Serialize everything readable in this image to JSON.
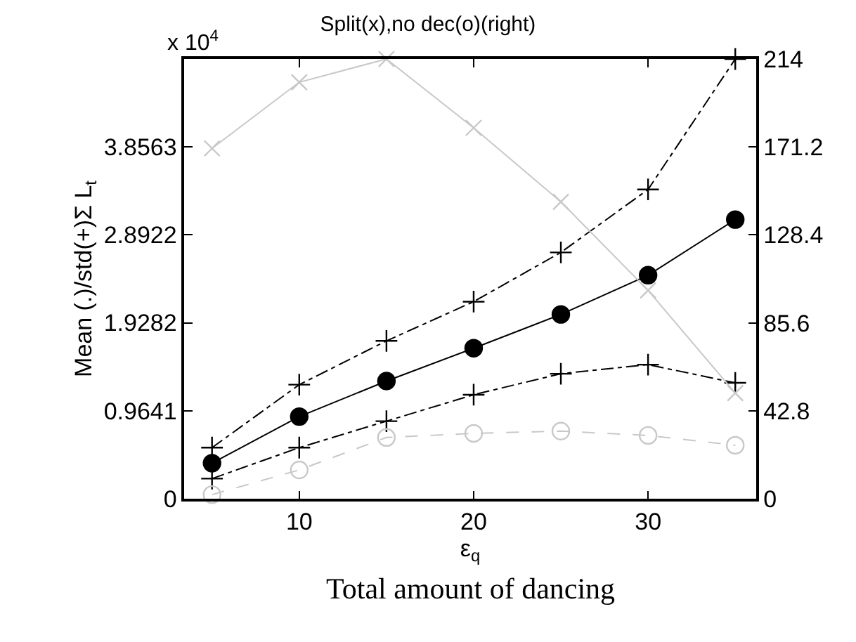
{
  "chart_data": {
    "type": "line",
    "title": "Split(x),no dec(o)(right)",
    "xlabel": "ε$_{q}$",
    "ylabel": "Mean (.)/std(+)Σ L$_{t}$",
    "annotations": [
      "x 10$^{4}$",
      "Total amount of dancing"
    ],
    "x": [
      5,
      10,
      15,
      20,
      25,
      30,
      35
    ],
    "xlim": [
      3.4,
      36.2
    ],
    "xticks": [
      10,
      20,
      30
    ],
    "ylim": [
      0,
      4.82
    ],
    "yticks": [
      0,
      0.9641,
      1.9282,
      2.8922,
      3.8563
    ],
    "y2lim": [
      0,
      214
    ],
    "y2ticks": [
      0,
      42.8,
      85.6,
      128.4,
      171.2,
      214
    ],
    "legend": false,
    "series": [
      {
        "color": "#000000",
        "marker": "circle",
        "line_style": "solid",
        "values": [
          0.39,
          0.9,
          1.29,
          1.65,
          2.02,
          2.45,
          3.06
        ]
      },
      {
        "color": "#000000",
        "marker": "cross",
        "line_style": "dashdot",
        "values": [
          0.56,
          1.25,
          1.73,
          2.16,
          2.7,
          3.39,
          4.82
        ]
      },
      {
        "color": "#000000",
        "marker": "cross",
        "line_style": "dashdot",
        "values": [
          0.22,
          0.56,
          0.85,
          1.14,
          1.37,
          1.47,
          1.27
        ]
      },
      {
        "color": "#c8c8c8",
        "marker": "x",
        "line_style": "solid",
        "axis": "y2",
        "values": [
          170.5,
          202.7,
          214,
          180.5,
          144.5,
          101.4,
          51.4
        ]
      },
      {
        "color": "#c8c8c8",
        "marker": "circle-open",
        "line_style": "dashed",
        "axis": "y2",
        "values": [
          2,
          14,
          29.8,
          31.8,
          32.9,
          30.8,
          26
        ]
      }
    ]
  }
}
